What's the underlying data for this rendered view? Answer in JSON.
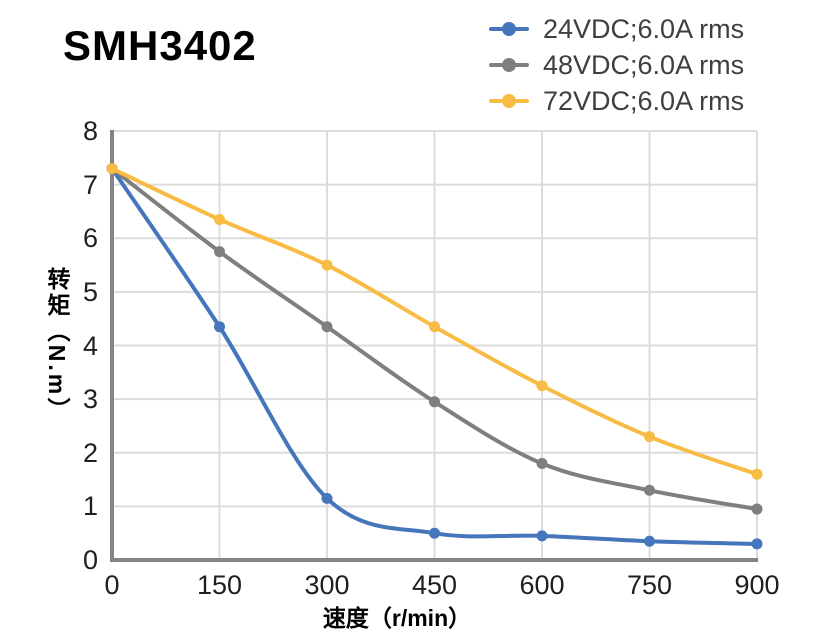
{
  "page": {
    "title": "SMH3402"
  },
  "chart_data": {
    "type": "line",
    "title": "SMH3402",
    "x": [
      0,
      150,
      300,
      450,
      600,
      750,
      900
    ],
    "x_ticks": [
      0,
      150,
      300,
      450,
      600,
      750,
      900
    ],
    "y_ticks": [
      0,
      1,
      2,
      3,
      4,
      5,
      6,
      7,
      8
    ],
    "xlim": [
      0,
      900
    ],
    "ylim": [
      0,
      8
    ],
    "xlabel": "速度（r/min）",
    "ylabel": "转矩（N.m）",
    "grid": true,
    "smooth": true,
    "legend_position": "top-right",
    "series": [
      {
        "name": "24VDC;6.0A rms",
        "color": "#4575BA",
        "values": [
          7.3,
          4.35,
          1.15,
          0.5,
          0.45,
          0.35,
          0.3
        ]
      },
      {
        "name": "48VDC;6.0A rms",
        "color": "#7F7F7F",
        "values": [
          7.3,
          5.75,
          4.35,
          2.95,
          1.8,
          1.3,
          0.95
        ]
      },
      {
        "name": "72VDC;6.0A rms",
        "color": "#F8BB43",
        "values": [
          7.3,
          6.35,
          5.5,
          4.35,
          3.25,
          2.3,
          1.6
        ]
      }
    ],
    "colors": {
      "axis": "#858585",
      "grid": "#DCDCDC",
      "tick_text": "#1F1F1F",
      "legend_text": "#3F3F3F"
    }
  }
}
